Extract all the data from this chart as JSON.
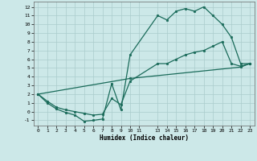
{
  "bg_color": "#cce8e8",
  "grid_color": "#aacccc",
  "line_color": "#1a6b5a",
  "xlabel": "Humidex (Indice chaleur)",
  "xlim": [
    -0.5,
    23.5
  ],
  "ylim": [
    -1.6,
    12.6
  ],
  "xticks": [
    0,
    1,
    2,
    3,
    4,
    5,
    6,
    7,
    8,
    9,
    10,
    11,
    13,
    14,
    15,
    16,
    17,
    18,
    19,
    20,
    21,
    22,
    23
  ],
  "yticks": [
    -1,
    0,
    1,
    2,
    3,
    4,
    5,
    6,
    7,
    8,
    9,
    10,
    11,
    12
  ],
  "line1_x": [
    0,
    1,
    2,
    3,
    4,
    5,
    6,
    7,
    8,
    9,
    10,
    13,
    14,
    15,
    16,
    17,
    18,
    19,
    20,
    21,
    22,
    23
  ],
  "line1_y": [
    2,
    1,
    0.3,
    -0.1,
    -0.4,
    -1.1,
    -1.0,
    -0.85,
    3.2,
    0.2,
    6.5,
    11.0,
    10.5,
    11.5,
    11.8,
    11.5,
    12.0,
    11.0,
    10.0,
    8.5,
    5.5,
    5.5
  ],
  "line2_x": [
    0,
    1,
    2,
    3,
    4,
    5,
    6,
    7,
    8,
    9,
    10,
    13,
    14,
    15,
    16,
    17,
    18,
    19,
    20,
    21,
    22,
    23
  ],
  "line2_y": [
    2,
    1.2,
    0.5,
    0.2,
    0.0,
    -0.2,
    -0.4,
    -0.3,
    1.5,
    0.8,
    3.5,
    5.5,
    5.5,
    6.0,
    6.5,
    6.8,
    7.0,
    7.5,
    8.0,
    5.5,
    5.2,
    5.5
  ],
  "line3_x": [
    0,
    10,
    22,
    23
  ],
  "line3_y": [
    2,
    3.8,
    5.1,
    5.5
  ]
}
